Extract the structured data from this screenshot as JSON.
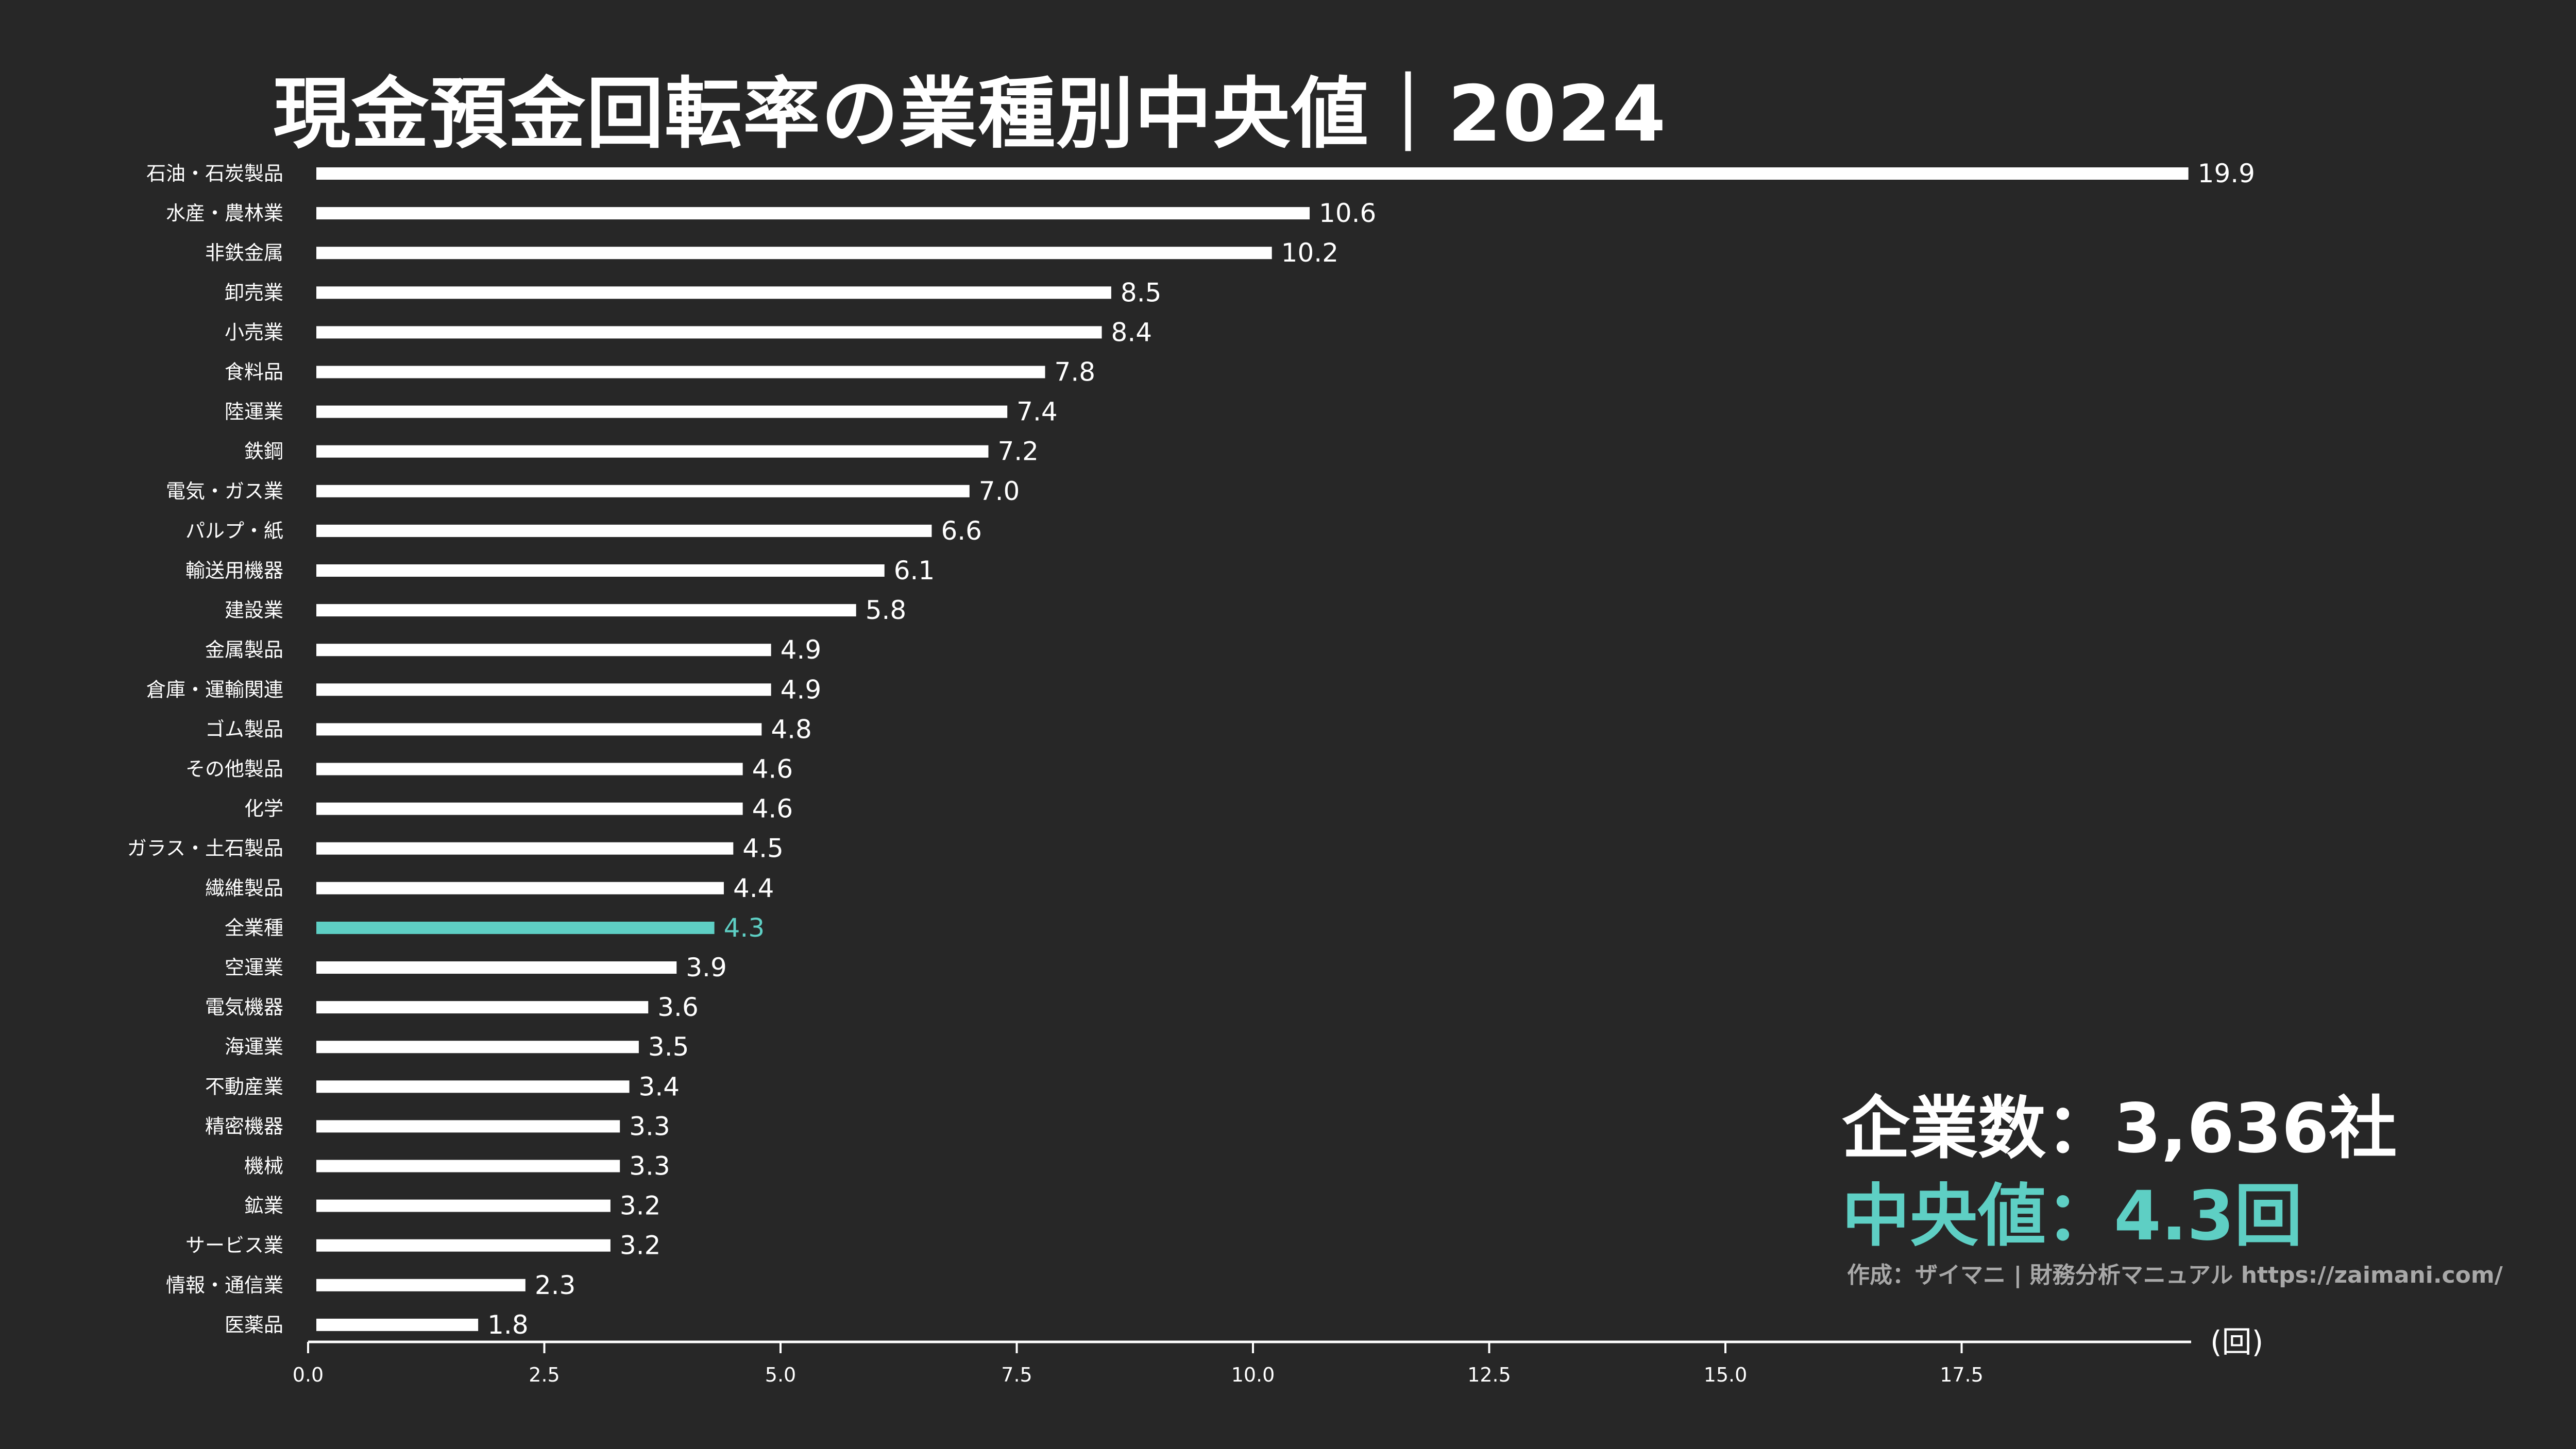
{
  "title": "現金預金回転率の業種別中央値｜2024",
  "stats": {
    "company_count": "企業数：3,636社",
    "median": "中央値：4.3回"
  },
  "credit": "作成：ザイマニ | 財務分析マニュアル https://zaimani.com/",
  "colors": {
    "background": "#272727",
    "bar": "#ffffff",
    "highlight": "#5ecfc4",
    "axis": "#ffffff",
    "credit": "#a8a8a8"
  },
  "chart_data": {
    "type": "bar",
    "orientation": "horizontal",
    "title": "現金預金回転率の業種別中央値｜2024",
    "categories": [
      "石油・石炭製品",
      "水産・農林業",
      "非鉄金属",
      "卸売業",
      "小売業",
      "食料品",
      "陸運業",
      "鉄鋼",
      "電気・ガス業",
      "パルプ・紙",
      "輸送用機器",
      "建設業",
      "金属製品",
      "倉庫・運輸関連",
      "ゴム製品",
      "その他製品",
      "化学",
      "ガラス・土石製品",
      "繊維製品",
      "全業種",
      "空運業",
      "電気機器",
      "海運業",
      "不動産業",
      "精密機器",
      "機械",
      "鉱業",
      "サービス業",
      "情報・通信業",
      "医薬品"
    ],
    "values": [
      19.9,
      10.6,
      10.2,
      8.5,
      8.4,
      7.8,
      7.4,
      7.2,
      7.0,
      6.6,
      6.1,
      5.8,
      4.9,
      4.9,
      4.8,
      4.6,
      4.6,
      4.5,
      4.4,
      4.3,
      3.9,
      3.6,
      3.5,
      3.4,
      3.3,
      3.3,
      3.2,
      3.2,
      2.3,
      1.8
    ],
    "value_labels": [
      "19.9",
      "10.6",
      "10.2",
      "8.5",
      "8.4",
      "7.8",
      "7.4",
      "7.2",
      "7.0",
      "6.6",
      "6.1",
      "5.8",
      "4.9",
      "4.9",
      "4.8",
      "4.6",
      "4.6",
      "4.5",
      "4.4",
      "4.3",
      "3.9",
      "3.6",
      "3.5",
      "3.4",
      "3.3",
      "3.3",
      "3.2",
      "3.2",
      "2.3",
      "1.8"
    ],
    "highlight_category": "全業種",
    "xlim": [
      0,
      20
    ],
    "xticks": [
      0,
      2.5,
      5,
      7.5,
      10,
      12.5,
      15,
      17.5
    ],
    "xtick_labels": [
      "0.0",
      "2.5",
      "5.0",
      "7.5",
      "10.0",
      "12.5",
      "15.0",
      "17.5"
    ],
    "xlabel": "(回)",
    "ylabel": "",
    "grid": false
  }
}
